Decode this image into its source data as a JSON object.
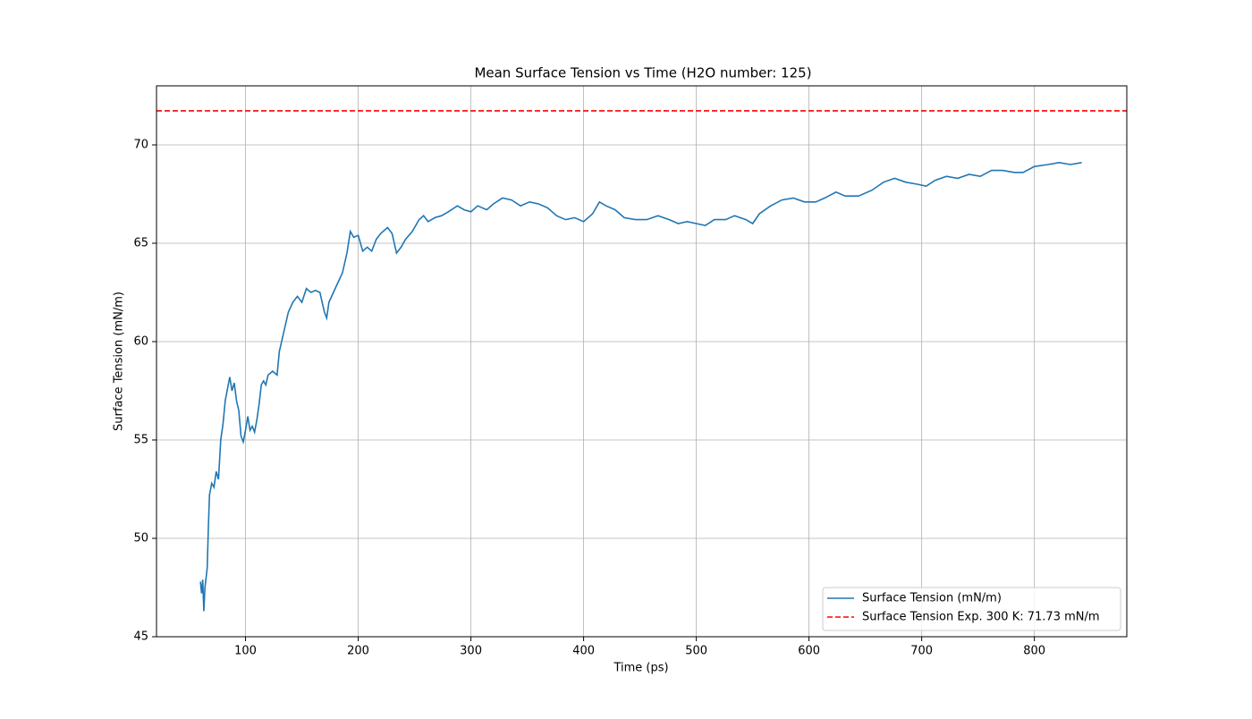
{
  "chart_data": {
    "type": "line",
    "title": "Mean Surface Tension vs Time (H2O number: 125)",
    "xlabel": "Time (ps)",
    "ylabel": "Surface Tension (mN/m)",
    "x": [
      60,
      61,
      62,
      63,
      64,
      66,
      67,
      68,
      70,
      72,
      74,
      76,
      78,
      80,
      82,
      84,
      86,
      88,
      90,
      92,
      94,
      96,
      98,
      100,
      102,
      104,
      106,
      108,
      110,
      112,
      114,
      116,
      118,
      120,
      124,
      128,
      130,
      134,
      138,
      142,
      146,
      150,
      154,
      158,
      162,
      166,
      170,
      172,
      174,
      178,
      182,
      186,
      190,
      193,
      196,
      200,
      204,
      208,
      212,
      216,
      220,
      226,
      230,
      234,
      238,
      242,
      248,
      254,
      258,
      262,
      268,
      274,
      280,
      288,
      294,
      300,
      306,
      314,
      320,
      328,
      336,
      344,
      352,
      360,
      368,
      376,
      384,
      392,
      400,
      408,
      414,
      420,
      428,
      436,
      446,
      456,
      466,
      476,
      484,
      492,
      500,
      508,
      516,
      526,
      534,
      544,
      550,
      556,
      566,
      576,
      586,
      596,
      606,
      614,
      624,
      632,
      644,
      656,
      666,
      676,
      686,
      696,
      704,
      712,
      722,
      732,
      742,
      752,
      762,
      772,
      782,
      790,
      800,
      812,
      822,
      832,
      842
    ],
    "series": [
      {
        "name": "Surface Tension (mN/m)",
        "color": "#1f77b4",
        "values": [
          47.8,
          47.2,
          47.9,
          46.3,
          47.5,
          48.5,
          50.5,
          52.2,
          52.8,
          52.6,
          53.4,
          53.0,
          55.0,
          55.8,
          57.0,
          57.6,
          58.2,
          57.5,
          57.9,
          57.0,
          56.5,
          55.2,
          54.9,
          55.5,
          56.2,
          55.5,
          55.7,
          55.4,
          56.0,
          56.8,
          57.8,
          58.0,
          57.8,
          58.3,
          58.5,
          58.3,
          59.5,
          60.5,
          61.5,
          62.0,
          62.3,
          62.0,
          62.7,
          62.5,
          62.6,
          62.5,
          61.5,
          61.2,
          62.0,
          62.5,
          63.0,
          63.5,
          64.5,
          65.6,
          65.3,
          65.4,
          64.6,
          64.8,
          64.6,
          65.2,
          65.5,
          65.8,
          65.5,
          64.5,
          64.8,
          65.2,
          65.6,
          66.2,
          66.4,
          66.1,
          66.3,
          66.4,
          66.6,
          66.9,
          66.7,
          66.6,
          66.9,
          66.7,
          67.0,
          67.3,
          67.2,
          66.9,
          67.1,
          67.0,
          66.8,
          66.4,
          66.2,
          66.3,
          66.1,
          66.5,
          67.1,
          66.9,
          66.7,
          66.3,
          66.2,
          66.2,
          66.4,
          66.2,
          66.0,
          66.1,
          66.0,
          65.9,
          66.2,
          66.2,
          66.4,
          66.2,
          66.0,
          66.5,
          66.9,
          67.2,
          67.3,
          67.1,
          67.1,
          67.3,
          67.6,
          67.4,
          67.4,
          67.7,
          68.1,
          68.3,
          68.1,
          68.0,
          67.9,
          68.2,
          68.4,
          68.3,
          68.5,
          68.4,
          68.7,
          68.7,
          68.6,
          68.6,
          68.9,
          69.0,
          69.1,
          69.0,
          69.1
        ]
      }
    ],
    "hline": {
      "name": "Surface Tension Exp. 300 K: 71.73 mN/m",
      "color": "#ff0000",
      "value": 71.73
    },
    "xlim": [
      21,
      882
    ],
    "ylim": [
      45,
      73
    ],
    "xticks": [
      100,
      200,
      300,
      400,
      500,
      600,
      700,
      800
    ],
    "yticks": [
      45,
      50,
      55,
      60,
      65,
      70
    ],
    "grid": true,
    "legend": "lower right"
  }
}
